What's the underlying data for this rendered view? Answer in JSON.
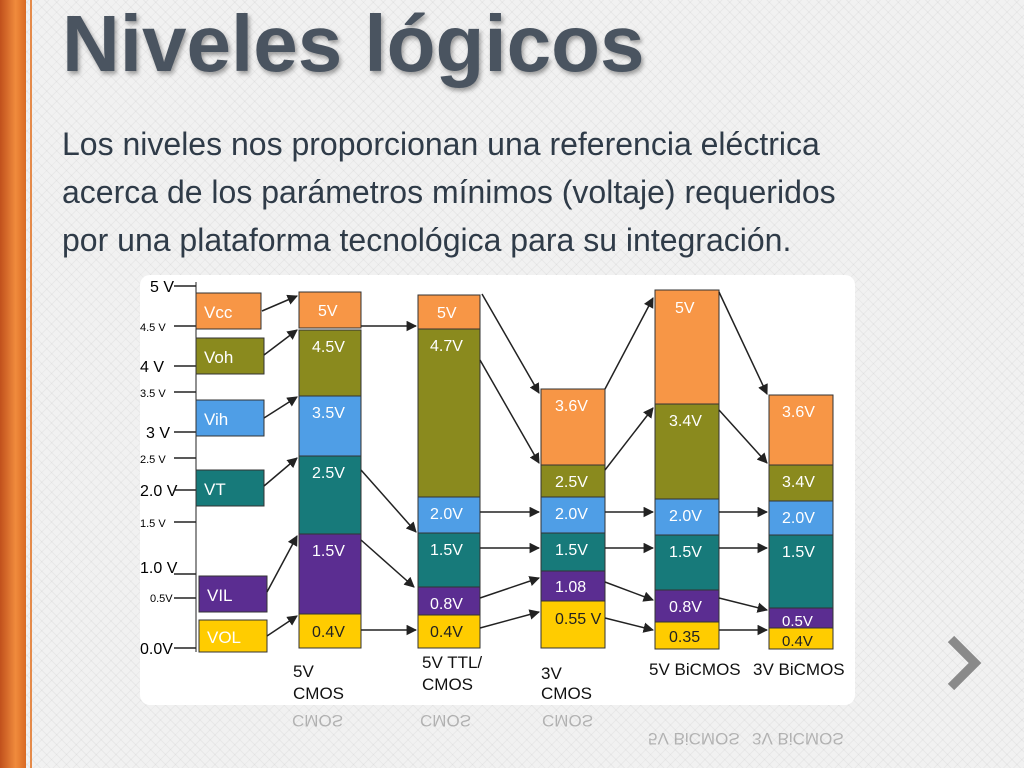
{
  "slide": {
    "title": "Niveles lógicos",
    "body_lines": [
      "Los niveles nos proporcionan una referencia eléctrica",
      "acerca de los parámetros mínimos  (voltaje) requeridos",
      "por una plataforma tecnológica para su integración."
    ]
  },
  "diagram": {
    "axis_ticks": [
      "5 V",
      "4.5 V",
      "4 V",
      "3.5 V",
      "3 V",
      "2.5 V",
      "2.0 V",
      "1.5 V",
      "1.0 V",
      "0.5V",
      "0.0V"
    ],
    "legend": [
      {
        "label": "Vcc",
        "color": "#f79646"
      },
      {
        "label": "Voh",
        "color": "#8a8a1e"
      },
      {
        "label": "Vih",
        "color": "#4f9ee6"
      },
      {
        "label": "VT",
        "color": "#177a7a"
      },
      {
        "label": "VIL",
        "color": "#5b2d91"
      },
      {
        "label": "VOL",
        "color": "#ffcc00"
      }
    ],
    "columns": [
      {
        "name": "5V CMOS",
        "label_lines": [
          "5V",
          "CMOS"
        ],
        "vcc": "5V",
        "voh": "4.5V",
        "vih": "3.5V",
        "vt": "2.5V",
        "vil": "1.5V",
        "vol": "0.4V"
      },
      {
        "name": "5V TTL/CMOS",
        "label_lines": [
          "5V TTL/",
          "CMOS"
        ],
        "vcc": "5V",
        "voh": "4.7V",
        "vih": "2.0V",
        "vt": "",
        "vil": "0.8V",
        "vol": "0.4V",
        "vt_note": "1.5V"
      },
      {
        "name": "3V CMOS",
        "label_lines": [
          "3V",
          "CMOS"
        ],
        "vcc": "3.6V",
        "voh": "2.5V",
        "vih": "2.0V",
        "vt": "1.5V",
        "vil": "1.08",
        "vol": "0.55 V"
      },
      {
        "name": "5V BiCMOS",
        "label_lines": [
          "5V BiCMOS"
        ],
        "vcc": "5V",
        "voh": "3.4V",
        "vih": "2.0V",
        "vt": "1.5V",
        "vil": "0.8V",
        "vol": "0.35"
      },
      {
        "name": "3V BiCMOS",
        "label_lines": [
          "3V BiCMOS"
        ],
        "vcc": "3.6V",
        "voh": "3.4V",
        "vih": "2.0V",
        "vt": "1.5V",
        "vil": "0.5V",
        "vol": "0.4V"
      }
    ]
  },
  "navigation": {
    "next_icon": "chevron-right-icon",
    "next_glyph": "❯"
  }
}
